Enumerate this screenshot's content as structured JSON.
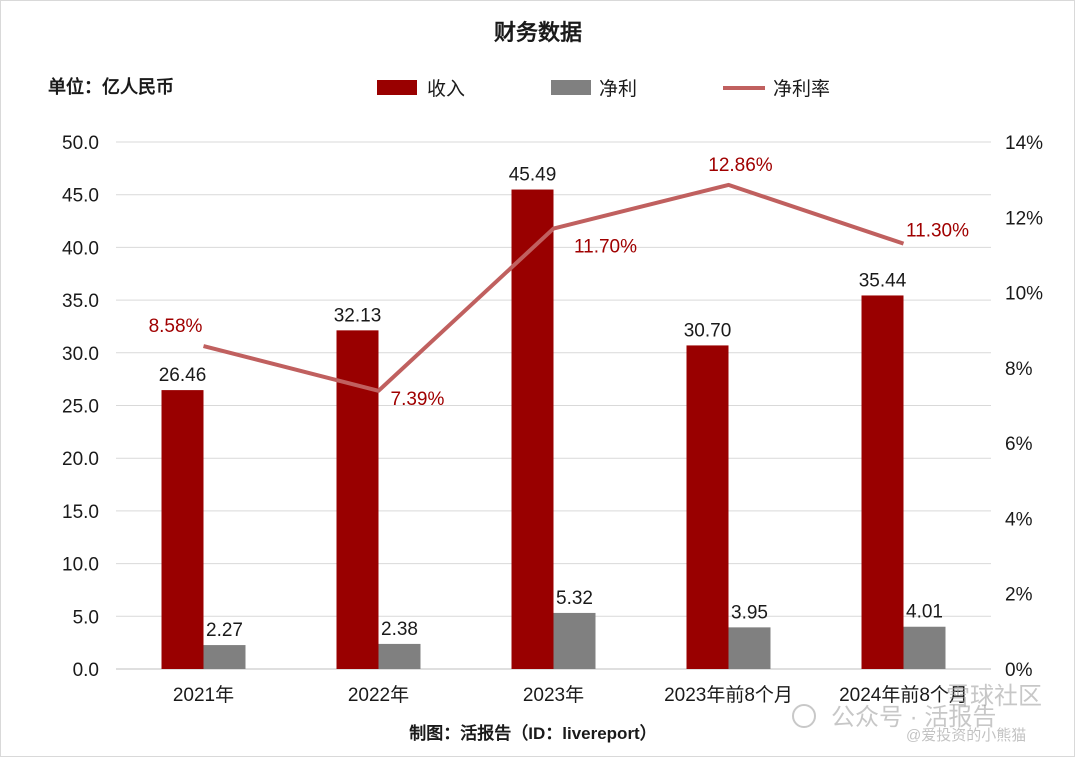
{
  "chart_data": {
    "type": "bar",
    "title": "财务数据",
    "unit_label": "单位：亿人民币",
    "categories": [
      "2021年",
      "2022年",
      "2023年",
      "2023年前8个月",
      "2024年前8个月"
    ],
    "series": [
      {
        "name": "收入",
        "type": "bar",
        "axis": "left",
        "color": "#990000",
        "values": [
          26.46,
          32.13,
          45.49,
          30.7,
          35.44
        ],
        "labels": [
          "26.46",
          "32.13",
          "45.49",
          "30.70",
          "35.44"
        ]
      },
      {
        "name": "净利",
        "type": "bar",
        "axis": "left",
        "color": "#808080",
        "values": [
          2.27,
          2.38,
          5.32,
          3.95,
          4.01
        ],
        "labels": [
          "2.27",
          "2.38",
          "5.32",
          "3.95",
          "4.01"
        ]
      },
      {
        "name": "净利率",
        "type": "line",
        "axis": "right",
        "color": "#c0605f",
        "values": [
          8.58,
          7.39,
          11.7,
          12.86,
          11.3
        ],
        "labels": [
          "8.58%",
          "7.39%",
          "11.70%",
          "12.86%",
          "11.30%"
        ]
      }
    ],
    "y_left": {
      "min": 0,
      "max": 50,
      "step": 5,
      "ticks": [
        "0.0",
        "5.0",
        "10.0",
        "15.0",
        "20.0",
        "25.0",
        "30.0",
        "35.0",
        "40.0",
        "45.0",
        "50.0"
      ]
    },
    "y_right": {
      "min": 0,
      "max": 14,
      "step": 2,
      "ticks": [
        "0%",
        "2%",
        "4%",
        "6%",
        "8%",
        "10%",
        "12%",
        "14%"
      ]
    },
    "grid": true,
    "legend_position": "top-center",
    "source": "制图：活报告（ID：livereport）"
  },
  "watermark": {
    "line1": "公众号 · 活报告",
    "line2": "@爱投资的小熊猫",
    "line3": "雪球社区"
  }
}
